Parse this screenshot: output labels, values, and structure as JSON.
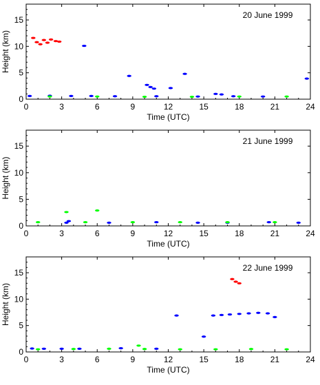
{
  "chart_data": [
    {
      "type": "scatter",
      "title": "20 June 1999",
      "xlabel": "Time (UTC)",
      "ylabel": "Height (km)",
      "xlim": [
        0,
        24
      ],
      "ylim": [
        0,
        18
      ],
      "x_ticks": [
        "0",
        "3",
        "6",
        "9",
        "12",
        "15",
        "18",
        "21",
        "24"
      ],
      "y_ticks": [
        "0",
        "5",
        "10",
        "15"
      ],
      "grid": false,
      "series": [
        {
          "color": "#ff0000",
          "marker": "cluster",
          "points": [
            [
              0.6,
              11.6
            ],
            [
              0.9,
              10.8
            ],
            [
              1.2,
              10.4
            ],
            [
              1.5,
              11.2
            ],
            [
              1.8,
              10.7
            ],
            [
              2.1,
              11.3
            ],
            [
              2.5,
              11.0
            ],
            [
              2.8,
              10.9
            ]
          ]
        },
        {
          "color": "#0000ff",
          "marker": "cluster",
          "points": [
            [
              4.9,
              10.1
            ],
            [
              8.7,
              4.4
            ],
            [
              10.2,
              2.7
            ],
            [
              10.5,
              2.3
            ],
            [
              10.8,
              2.0
            ],
            [
              12.2,
              2.1
            ],
            [
              13.4,
              4.8
            ],
            [
              16.0,
              1.0
            ],
            [
              16.5,
              0.9
            ],
            [
              23.7,
              3.9
            ],
            [
              0.3,
              0.6
            ],
            [
              2.0,
              0.65
            ],
            [
              3.8,
              0.6
            ],
            [
              5.5,
              0.6
            ],
            [
              7.5,
              0.55
            ],
            [
              11.0,
              0.55
            ],
            [
              14.5,
              0.5
            ],
            [
              17.5,
              0.55
            ],
            [
              20.0,
              0.5
            ]
          ]
        },
        {
          "color": "#00ff00",
          "marker": "cluster",
          "points": [
            [
              2.0,
              0.5
            ],
            [
              6.0,
              0.5
            ],
            [
              10.0,
              0.45
            ],
            [
              14.0,
              0.45
            ],
            [
              18.0,
              0.5
            ],
            [
              22.0,
              0.5
            ]
          ]
        }
      ]
    },
    {
      "type": "scatter",
      "title": "21 June 1999",
      "xlabel": "Time (UTC)",
      "ylabel": "Height (km)",
      "xlim": [
        0,
        24
      ],
      "ylim": [
        0,
        18
      ],
      "x_ticks": [
        "0",
        "3",
        "6",
        "9",
        "12",
        "15",
        "18",
        "21",
        "24"
      ],
      "y_ticks": [
        "0",
        "5",
        "10",
        "15"
      ],
      "grid": false,
      "series": [
        {
          "color": "#0000ff",
          "marker": "cluster",
          "points": [
            [
              3.6,
              0.9
            ],
            [
              3.4,
              0.6
            ],
            [
              7.0,
              0.6
            ],
            [
              11.0,
              0.7
            ],
            [
              14.5,
              0.6
            ],
            [
              17.0,
              0.6
            ],
            [
              20.5,
              0.7
            ],
            [
              23.0,
              0.6
            ]
          ]
        },
        {
          "color": "#00ff00",
          "marker": "cluster",
          "points": [
            [
              1.0,
              0.7
            ],
            [
              5.0,
              0.7
            ],
            [
              9.0,
              0.7
            ],
            [
              13.0,
              0.7
            ],
            [
              17.0,
              0.7
            ],
            [
              21.0,
              0.7
            ],
            [
              3.4,
              2.6
            ],
            [
              6.0,
              2.9
            ]
          ]
        }
      ]
    },
    {
      "type": "scatter",
      "title": "22 June 1999",
      "xlabel": "Time (UTC)",
      "ylabel": "Height (km)",
      "xlim": [
        0,
        24
      ],
      "ylim": [
        0,
        18
      ],
      "x_ticks": [
        "0",
        "3",
        "6",
        "9",
        "12",
        "15",
        "18",
        "21",
        "24"
      ],
      "y_ticks": [
        "0",
        "5",
        "10",
        "15"
      ],
      "grid": false,
      "series": [
        {
          "color": "#ff0000",
          "marker": "cluster",
          "points": [
            [
              17.4,
              13.8
            ],
            [
              18.0,
              13.0
            ],
            [
              17.7,
              13.3
            ]
          ]
        },
        {
          "color": "#0000ff",
          "marker": "cluster",
          "points": [
            [
              12.7,
              6.9
            ],
            [
              15.8,
              6.9
            ],
            [
              16.5,
              7.0
            ],
            [
              17.2,
              7.1
            ],
            [
              18.0,
              7.2
            ],
            [
              18.8,
              7.3
            ],
            [
              19.6,
              7.4
            ],
            [
              20.4,
              7.3
            ],
            [
              21.0,
              6.6
            ],
            [
              0.5,
              0.65
            ],
            [
              1.5,
              0.6
            ],
            [
              3.0,
              0.6
            ],
            [
              4.5,
              0.6
            ],
            [
              8.0,
              0.7
            ],
            [
              11.0,
              0.6
            ],
            [
              15.0,
              2.9
            ]
          ]
        },
        {
          "color": "#00ff00",
          "marker": "cluster",
          "points": [
            [
              1.0,
              0.5
            ],
            [
              4.0,
              0.55
            ],
            [
              7.0,
              0.6
            ],
            [
              10.0,
              0.55
            ],
            [
              13.0,
              0.5
            ],
            [
              16.0,
              0.5
            ],
            [
              19.0,
              0.55
            ],
            [
              22.0,
              0.5
            ],
            [
              9.5,
              1.2
            ]
          ]
        }
      ]
    }
  ]
}
